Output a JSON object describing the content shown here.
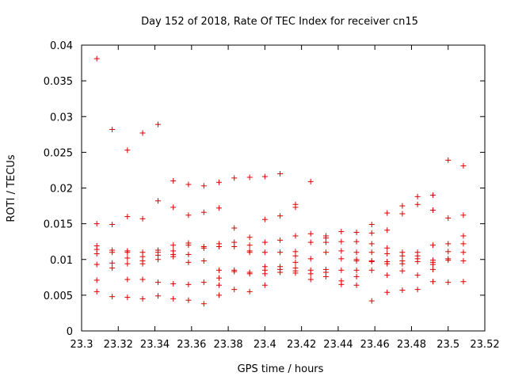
{
  "chart_data": {
    "type": "scatter",
    "title": "Day 152 of 2018, Rate Of TEC Index for receiver cn15",
    "xlabel": "GPS time / hours",
    "ylabel": "ROTI / TECUs",
    "xlim": [
      23.3,
      23.52
    ],
    "ylim": [
      0,
      0.04
    ],
    "xticks": [
      "23.3",
      "23.32",
      "23.34",
      "23.36",
      "23.38",
      "23.4",
      "23.42",
      "23.44",
      "23.46",
      "23.48",
      "23.5",
      "23.52"
    ],
    "yticks": [
      "0",
      "0.005",
      "0.01",
      "0.015",
      "0.02",
      "0.025",
      "0.03",
      "0.035",
      "0.04"
    ],
    "marker": "+",
    "color": "#dd0000",
    "series": [
      {
        "name": "ROTI",
        "points": [
          [
            23.3083,
            0.0381
          ],
          [
            23.3083,
            0.015
          ],
          [
            23.3083,
            0.0119
          ],
          [
            23.3083,
            0.0114
          ],
          [
            23.3083,
            0.0108
          ],
          [
            23.3083,
            0.0093
          ],
          [
            23.3083,
            0.0071
          ],
          [
            23.3083,
            0.0055
          ],
          [
            23.3167,
            0.0282
          ],
          [
            23.3167,
            0.0149
          ],
          [
            23.3167,
            0.0113
          ],
          [
            23.3167,
            0.011
          ],
          [
            23.3167,
            0.0095
          ],
          [
            23.3167,
            0.0088
          ],
          [
            23.3167,
            0.0048
          ],
          [
            23.325,
            0.0253
          ],
          [
            23.325,
            0.016
          ],
          [
            23.325,
            0.0112
          ],
          [
            23.325,
            0.011
          ],
          [
            23.325,
            0.0102
          ],
          [
            23.325,
            0.0094
          ],
          [
            23.325,
            0.0072
          ],
          [
            23.325,
            0.0047
          ],
          [
            23.3333,
            0.0277
          ],
          [
            23.3333,
            0.0157
          ],
          [
            23.3333,
            0.011
          ],
          [
            23.3333,
            0.0104
          ],
          [
            23.3333,
            0.0098
          ],
          [
            23.3333,
            0.0094
          ],
          [
            23.3333,
            0.0072
          ],
          [
            23.3333,
            0.0045
          ],
          [
            23.3417,
            0.0289
          ],
          [
            23.3417,
            0.0182
          ],
          [
            23.3417,
            0.0113
          ],
          [
            23.3417,
            0.011
          ],
          [
            23.3417,
            0.0106
          ],
          [
            23.3417,
            0.01
          ],
          [
            23.3417,
            0.0068
          ],
          [
            23.3417,
            0.0049
          ],
          [
            23.35,
            0.021
          ],
          [
            23.35,
            0.0173
          ],
          [
            23.35,
            0.012
          ],
          [
            23.35,
            0.0112
          ],
          [
            23.35,
            0.0107
          ],
          [
            23.35,
            0.0104
          ],
          [
            23.35,
            0.0066
          ],
          [
            23.35,
            0.0045
          ],
          [
            23.3583,
            0.0205
          ],
          [
            23.3583,
            0.0162
          ],
          [
            23.3583,
            0.0123
          ],
          [
            23.3583,
            0.012
          ],
          [
            23.3583,
            0.0107
          ],
          [
            23.3583,
            0.0096
          ],
          [
            23.3583,
            0.0065
          ],
          [
            23.3583,
            0.0043
          ],
          [
            23.3667,
            0.0203
          ],
          [
            23.3667,
            0.0166
          ],
          [
            23.3667,
            0.0118
          ],
          [
            23.3667,
            0.0116
          ],
          [
            23.3667,
            0.0098
          ],
          [
            23.3667,
            0.0068
          ],
          [
            23.3667,
            0.0038
          ],
          [
            23.375,
            0.0208
          ],
          [
            23.375,
            0.0172
          ],
          [
            23.375,
            0.0122
          ],
          [
            23.375,
            0.0118
          ],
          [
            23.375,
            0.0085
          ],
          [
            23.375,
            0.0074
          ],
          [
            23.375,
            0.0064
          ],
          [
            23.375,
            0.005
          ],
          [
            23.3833,
            0.0214
          ],
          [
            23.3833,
            0.0144
          ],
          [
            23.3833,
            0.0124
          ],
          [
            23.3833,
            0.0118
          ],
          [
            23.3833,
            0.0085
          ],
          [
            23.3833,
            0.0083
          ],
          [
            23.3833,
            0.0058
          ],
          [
            23.3917,
            0.0215
          ],
          [
            23.3917,
            0.0131
          ],
          [
            23.3917,
            0.012
          ],
          [
            23.3917,
            0.0112
          ],
          [
            23.3917,
            0.011
          ],
          [
            23.3917,
            0.0082
          ],
          [
            23.3917,
            0.008
          ],
          [
            23.3917,
            0.0055
          ],
          [
            23.4,
            0.0216
          ],
          [
            23.4,
            0.0156
          ],
          [
            23.4,
            0.0124
          ],
          [
            23.4,
            0.011
          ],
          [
            23.4,
            0.009
          ],
          [
            23.4,
            0.0085
          ],
          [
            23.4,
            0.008
          ],
          [
            23.4,
            0.0064
          ],
          [
            23.4083,
            0.022
          ],
          [
            23.4083,
            0.0161
          ],
          [
            23.4083,
            0.0127
          ],
          [
            23.4083,
            0.011
          ],
          [
            23.4083,
            0.009
          ],
          [
            23.4083,
            0.0086
          ],
          [
            23.4083,
            0.0082
          ],
          [
            23.4167,
            0.0177
          ],
          [
            23.4167,
            0.0173
          ],
          [
            23.4167,
            0.0133
          ],
          [
            23.4167,
            0.0111
          ],
          [
            23.4167,
            0.0105
          ],
          [
            23.4167,
            0.0096
          ],
          [
            23.4167,
            0.0088
          ],
          [
            23.4167,
            0.0084
          ],
          [
            23.4167,
            0.0081
          ],
          [
            23.425,
            0.0209
          ],
          [
            23.425,
            0.0136
          ],
          [
            23.425,
            0.0124
          ],
          [
            23.425,
            0.0101
          ],
          [
            23.425,
            0.0085
          ],
          [
            23.425,
            0.008
          ],
          [
            23.425,
            0.0072
          ],
          [
            23.4333,
            0.0133
          ],
          [
            23.4333,
            0.013
          ],
          [
            23.4333,
            0.0124
          ],
          [
            23.4333,
            0.011
          ],
          [
            23.4333,
            0.0086
          ],
          [
            23.4333,
            0.0082
          ],
          [
            23.4333,
            0.0076
          ],
          [
            23.4417,
            0.0139
          ],
          [
            23.4417,
            0.0125
          ],
          [
            23.4417,
            0.0112
          ],
          [
            23.4417,
            0.0101
          ],
          [
            23.4417,
            0.0085
          ],
          [
            23.4417,
            0.007
          ],
          [
            23.4417,
            0.0065
          ],
          [
            23.45,
            0.0138
          ],
          [
            23.45,
            0.0125
          ],
          [
            23.45,
            0.011
          ],
          [
            23.45,
            0.01
          ],
          [
            23.45,
            0.0098
          ],
          [
            23.45,
            0.0085
          ],
          [
            23.45,
            0.0076
          ],
          [
            23.45,
            0.0064
          ],
          [
            23.4583,
            0.0149
          ],
          [
            23.4583,
            0.0137
          ],
          [
            23.4583,
            0.0122
          ],
          [
            23.4583,
            0.011
          ],
          [
            23.4583,
            0.0098
          ],
          [
            23.4583,
            0.0097
          ],
          [
            23.4583,
            0.0085
          ],
          [
            23.4583,
            0.0042
          ],
          [
            23.4667,
            0.0165
          ],
          [
            23.4667,
            0.0141
          ],
          [
            23.4667,
            0.0116
          ],
          [
            23.4667,
            0.0108
          ],
          [
            23.4667,
            0.0097
          ],
          [
            23.4667,
            0.0094
          ],
          [
            23.4667,
            0.0078
          ],
          [
            23.4667,
            0.0054
          ],
          [
            23.475,
            0.0175
          ],
          [
            23.475,
            0.0164
          ],
          [
            23.475,
            0.011
          ],
          [
            23.475,
            0.0105
          ],
          [
            23.475,
            0.0098
          ],
          [
            23.475,
            0.0094
          ],
          [
            23.475,
            0.0084
          ],
          [
            23.475,
            0.0057
          ],
          [
            23.4833,
            0.0188
          ],
          [
            23.4833,
            0.0177
          ],
          [
            23.4833,
            0.011
          ],
          [
            23.4833,
            0.0105
          ],
          [
            23.4833,
            0.0101
          ],
          [
            23.4833,
            0.0097
          ],
          [
            23.4833,
            0.0078
          ],
          [
            23.4833,
            0.0058
          ],
          [
            23.4917,
            0.019
          ],
          [
            23.4917,
            0.0169
          ],
          [
            23.4917,
            0.012
          ],
          [
            23.4917,
            0.0099
          ],
          [
            23.4917,
            0.0096
          ],
          [
            23.4917,
            0.0093
          ],
          [
            23.4917,
            0.0086
          ],
          [
            23.4917,
            0.0069
          ],
          [
            23.5,
            0.0239
          ],
          [
            23.5,
            0.0158
          ],
          [
            23.5,
            0.0122
          ],
          [
            23.5,
            0.0111
          ],
          [
            23.5,
            0.0101
          ],
          [
            23.5,
            0.0099
          ],
          [
            23.5,
            0.0068
          ],
          [
            23.5083,
            0.0231
          ],
          [
            23.5083,
            0.0162
          ],
          [
            23.5083,
            0.0133
          ],
          [
            23.5083,
            0.0122
          ],
          [
            23.5083,
            0.011
          ],
          [
            23.5083,
            0.0098
          ],
          [
            23.5083,
            0.0069
          ]
        ]
      }
    ]
  }
}
